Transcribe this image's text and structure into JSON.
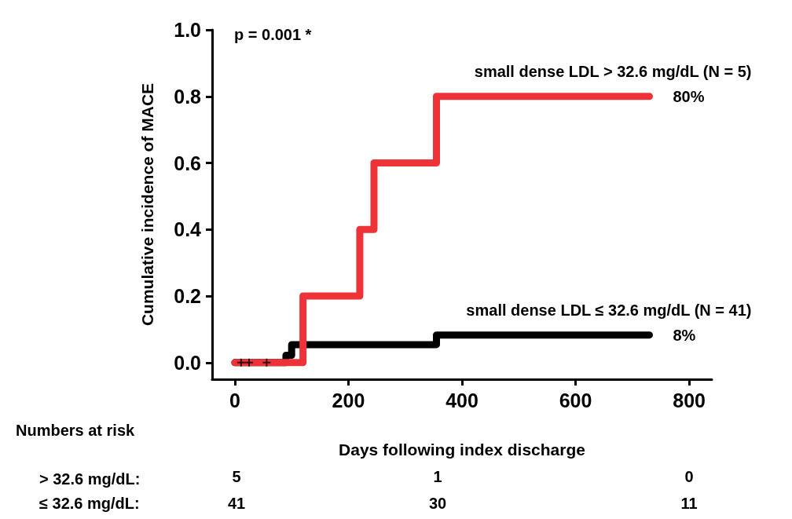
{
  "chart_data": {
    "type": "step",
    "ylabel": "Cumulative incidence of MACE",
    "xlabel": "Days following index discharge",
    "xlim": [
      -40,
      840
    ],
    "xticks": [
      0,
      200,
      400,
      600,
      800
    ],
    "ylim": [
      -0.05,
      1.0
    ],
    "yticks": [
      {
        "value": 0,
        "label": "0.0"
      },
      0.2,
      0.4,
      0.6,
      0.8,
      {
        "value": 1,
        "label": "1.0"
      }
    ],
    "series": [
      {
        "name": "small dense LDL ≤ 32.6 mg/dL (N = 41)",
        "color": "#000000",
        "x": [
          0,
          90,
          100,
          355,
          730
        ],
        "values": [
          0,
          0.022,
          0.054,
          0.083,
          0.083
        ],
        "value_labels": [
          null,
          null,
          null,
          null,
          "8%"
        ]
      },
      {
        "name": "small dense LDL > 32.6 mg/dL (N = 5)",
        "color": "#ee3338",
        "x": [
          0,
          120,
          220,
          245,
          355,
          730
        ],
        "values": [
          0,
          0.2,
          0.4,
          0.6,
          0.8,
          0.8
        ],
        "value_labels": [
          null,
          null,
          null,
          null,
          null,
          "80%"
        ]
      },
      {
        "type": "scatter",
        "marker": "cross",
        "color": "#000000",
        "x": [
          11,
          25,
          56
        ],
        "values": [
          0,
          0,
          0
        ]
      }
    ],
    "marker": "none",
    "line_style": "solid",
    "annotations": [
      "p = 0.001 *",
      "Numbers at risk",
      "> 32.6 mg/dL:",
      "5",
      "1",
      "0",
      "≤ 32.6 mg/dL:",
      "41",
      "30",
      "11"
    ]
  }
}
